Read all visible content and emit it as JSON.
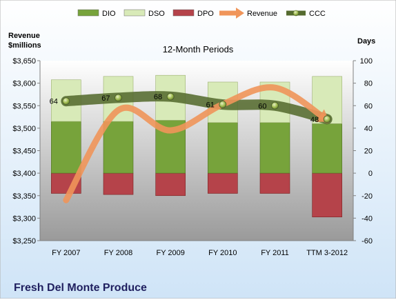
{
  "chart_data": {
    "type": "bar",
    "title": "12-Month Periods",
    "footer_title": "Fresh Del Monte Produce",
    "left_axis_label_line1": "Revenue",
    "left_axis_label_line2": "$millions",
    "right_axis_label": "Days",
    "categories": [
      "FY 2007",
      "FY 2008",
      "FY 2009",
      "FY 2010",
      "FY 2011",
      "TTM 3-2012"
    ],
    "left_axis": {
      "min": 3250,
      "max": 3650,
      "step": 50,
      "ticks": [
        "$3,250",
        "$3,300",
        "$3,350",
        "$3,400",
        "$3,450",
        "$3,500",
        "$3,550",
        "$3,600",
        "$3,650"
      ]
    },
    "right_axis": {
      "min": -60,
      "max": 100,
      "step": 20,
      "ticks": [
        "-60",
        "-40",
        "-20",
        "0",
        "20",
        "40",
        "60",
        "80",
        "100"
      ]
    },
    "legend": [
      {
        "name": "DIO",
        "kind": "bar",
        "color": "#77a33b"
      },
      {
        "name": "DSO",
        "kind": "bar",
        "color": "#d8eab8"
      },
      {
        "name": "DPO",
        "kind": "bar",
        "color": "#b5434a"
      },
      {
        "name": "Revenue",
        "kind": "line",
        "color": "#f0955a"
      },
      {
        "name": "CCC",
        "kind": "line",
        "color": "#556b2f"
      }
    ],
    "series": [
      {
        "name": "DIO",
        "axis": "days",
        "values": [
          46,
          46,
          47,
          45,
          45,
          44
        ],
        "color": "#77a33b"
      },
      {
        "name": "DSO",
        "axis": "days",
        "values": [
          37,
          40,
          40,
          36,
          36,
          42
        ],
        "color": "#d8eab8"
      },
      {
        "name": "DPO",
        "axis": "days",
        "values": [
          -18,
          -19,
          -20,
          -18,
          -18,
          -39
        ],
        "color": "#b5434a"
      },
      {
        "name": "Revenue",
        "axis": "revenue",
        "values": [
          3340,
          3540,
          3495,
          3553,
          3590,
          3518
        ],
        "color": "#f0955a"
      },
      {
        "name": "CCC",
        "axis": "days",
        "values": [
          64,
          67,
          68,
          61,
          60,
          48
        ],
        "labels": [
          "64",
          "67",
          "68",
          "61",
          "60",
          "48"
        ],
        "color": "#556b2f"
      }
    ]
  }
}
